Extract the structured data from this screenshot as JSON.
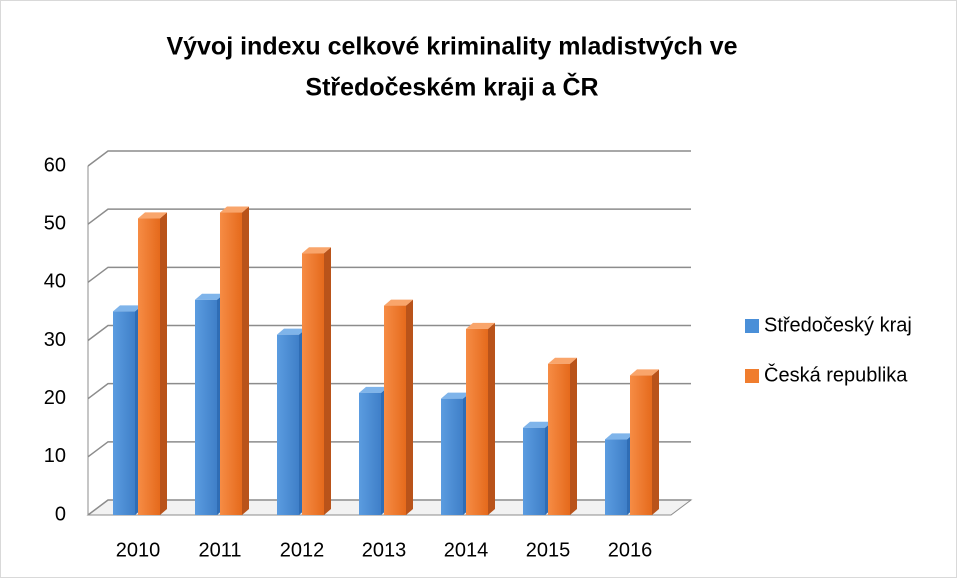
{
  "chart_data": {
    "type": "bar3d",
    "title": [
      "Vývoj indexu celkové kriminality mladistvých ve",
      "Středočeském kraji a ČR"
    ],
    "categories": [
      "2010",
      "2011",
      "2012",
      "2013",
      "2014",
      "2015",
      "2016"
    ],
    "series": [
      {
        "name": "Středočeský kraj",
        "color": "#4a8fd8",
        "values": [
          35,
          37,
          31,
          21,
          20,
          15,
          13
        ]
      },
      {
        "name": "Česká republika",
        "color": "#f07d2e",
        "values": [
          51,
          52,
          45,
          36,
          32,
          26,
          24
        ]
      }
    ],
    "ylim": [
      0,
      60
    ],
    "yticks": [
      0,
      10,
      20,
      30,
      40,
      50,
      60
    ],
    "grid": true,
    "legend": "right"
  }
}
